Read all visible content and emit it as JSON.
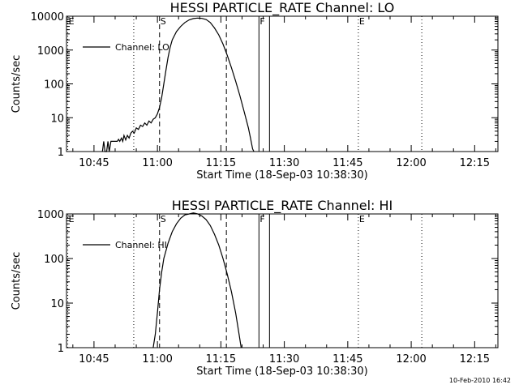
{
  "chart_data": [
    {
      "type": "line",
      "title": "HESSI PARTICLE_RATE Channel: LO",
      "xlabel": "Start Time (18-Sep-03 10:38:30)",
      "ylabel": "Counts/sec",
      "x_unit": "minutes after 10:38:30",
      "xlim": [
        0,
        102
      ],
      "ylim": [
        1,
        10000
      ],
      "yscale": "log",
      "x_ticks": [
        {
          "t": 6.5,
          "label": "10:45"
        },
        {
          "t": 21.5,
          "label": "11:00"
        },
        {
          "t": 36.5,
          "label": "11:15"
        },
        {
          "t": 51.5,
          "label": "11:30"
        },
        {
          "t": 66.5,
          "label": "11:45"
        },
        {
          "t": 81.5,
          "label": "12:00"
        },
        {
          "t": 96.5,
          "label": "12:15"
        }
      ],
      "y_ticks": [
        {
          "v": 1,
          "label": "1"
        },
        {
          "v": 10,
          "label": "10"
        },
        {
          "v": 100,
          "label": "100"
        },
        {
          "v": 1000,
          "label": "1000"
        },
        {
          "v": 10000,
          "label": "10000"
        }
      ],
      "legend": {
        "label": "Channel: LO",
        "placement": "top-left"
      },
      "markers": [
        {
          "t": 0.3,
          "label": "E",
          "style": "dotted"
        },
        {
          "t": 15.9,
          "label": "",
          "style": "dotted"
        },
        {
          "t": 22.0,
          "label": "S",
          "style": "dashed"
        },
        {
          "t": 37.8,
          "label": "",
          "style": "dashed"
        },
        {
          "t": 45.5,
          "label": "F",
          "style": "solid"
        },
        {
          "t": 48.0,
          "label": "",
          "style": "solid"
        },
        {
          "t": 69.0,
          "label": "E",
          "style": "dotted"
        },
        {
          "t": 84.0,
          "label": "",
          "style": "dotted"
        }
      ],
      "series": [
        {
          "name": "Channel: LO",
          "points": [
            [
              8.5,
              1
            ],
            [
              8.8,
              2
            ],
            [
              9.1,
              1
            ],
            [
              9.5,
              1
            ],
            [
              9.8,
              2
            ],
            [
              10.1,
              1
            ],
            [
              10.5,
              2
            ],
            [
              11,
              2
            ],
            [
              11.5,
              2
            ],
            [
              12,
              2
            ],
            [
              12.3,
              2.3
            ],
            [
              12.6,
              2
            ],
            [
              13,
              2.5
            ],
            [
              13.3,
              2
            ],
            [
              13.6,
              3
            ],
            [
              14,
              2.2
            ],
            [
              14.4,
              3
            ],
            [
              14.8,
              2.5
            ],
            [
              15.2,
              3.5
            ],
            [
              15.6,
              4
            ],
            [
              16,
              3.5
            ],
            [
              16.5,
              5
            ],
            [
              17,
              4.5
            ],
            [
              17.5,
              6
            ],
            [
              18,
              5.5
            ],
            [
              18.5,
              7
            ],
            [
              19,
              6
            ],
            [
              19.5,
              8
            ],
            [
              20,
              7
            ],
            [
              20.5,
              9
            ],
            [
              21,
              10
            ],
            [
              21.5,
              13
            ],
            [
              22,
              20
            ],
            [
              22.5,
              40
            ],
            [
              23,
              100
            ],
            [
              23.5,
              250
            ],
            [
              24,
              600
            ],
            [
              24.5,
              1200
            ],
            [
              25,
              2000
            ],
            [
              26,
              3500
            ],
            [
              27,
              5000
            ],
            [
              28,
              6500
            ],
            [
              29,
              7800
            ],
            [
              30,
              8500
            ],
            [
              31,
              8800
            ],
            [
              32,
              8600
            ],
            [
              33,
              8000
            ],
            [
              34,
              6500
            ],
            [
              35,
              4500
            ],
            [
              36,
              2800
            ],
            [
              37,
              1500
            ],
            [
              38,
              700
            ],
            [
              39,
              300
            ],
            [
              40,
              120
            ],
            [
              41,
              45
            ],
            [
              42,
              15
            ],
            [
              43,
              5
            ],
            [
              43.5,
              2.5
            ],
            [
              44,
              1.2
            ],
            [
              44.3,
              1
            ]
          ]
        }
      ]
    },
    {
      "type": "line",
      "title": "HESSI PARTICLE_RATE Channel: HI",
      "xlabel": "Start Time (18-Sep-03 10:38:30)",
      "ylabel": "Counts/sec",
      "x_unit": "minutes after 10:38:30",
      "xlim": [
        0,
        102
      ],
      "ylim": [
        1,
        1000
      ],
      "yscale": "log",
      "x_ticks": [
        {
          "t": 6.5,
          "label": "10:45"
        },
        {
          "t": 21.5,
          "label": "11:00"
        },
        {
          "t": 36.5,
          "label": "11:15"
        },
        {
          "t": 51.5,
          "label": "11:30"
        },
        {
          "t": 66.5,
          "label": "11:45"
        },
        {
          "t": 81.5,
          "label": "12:00"
        },
        {
          "t": 96.5,
          "label": "12:15"
        }
      ],
      "y_ticks": [
        {
          "v": 1,
          "label": "1"
        },
        {
          "v": 10,
          "label": "10"
        },
        {
          "v": 100,
          "label": "100"
        },
        {
          "v": 1000,
          "label": "1000"
        }
      ],
      "legend": {
        "label": "Channel: HI",
        "placement": "top-left"
      },
      "markers": [
        {
          "t": 0.3,
          "label": "E",
          "style": "dotted"
        },
        {
          "t": 15.9,
          "label": "",
          "style": "dotted"
        },
        {
          "t": 22.0,
          "label": "S",
          "style": "dashed"
        },
        {
          "t": 37.8,
          "label": "",
          "style": "dashed"
        },
        {
          "t": 45.5,
          "label": "F",
          "style": "solid"
        },
        {
          "t": 48.0,
          "label": "",
          "style": "solid"
        },
        {
          "t": 69.0,
          "label": "E",
          "style": "dotted"
        },
        {
          "t": 84.0,
          "label": "",
          "style": "dotted"
        }
      ],
      "series": [
        {
          "name": "Channel: HI",
          "points": [
            [
              20.5,
              1
            ],
            [
              21,
              2
            ],
            [
              21.5,
              6
            ],
            [
              22,
              20
            ],
            [
              22.5,
              50
            ],
            [
              23,
              100
            ],
            [
              24,
              220
            ],
            [
              25,
              400
            ],
            [
              26,
              600
            ],
            [
              27,
              800
            ],
            [
              28,
              950
            ],
            [
              29,
              1000
            ],
            [
              30,
              1050
            ],
            [
              31,
              1000
            ],
            [
              32,
              900
            ],
            [
              33,
              750
            ],
            [
              34,
              550
            ],
            [
              35,
              350
            ],
            [
              36,
              200
            ],
            [
              37,
              100
            ],
            [
              38,
              45
            ],
            [
              39,
              18
            ],
            [
              40,
              6
            ],
            [
              40.8,
              2
            ],
            [
              41.3,
              1
            ]
          ]
        }
      ]
    }
  ],
  "footer": {
    "timestamp": "10-Feb-2010 16:42"
  }
}
